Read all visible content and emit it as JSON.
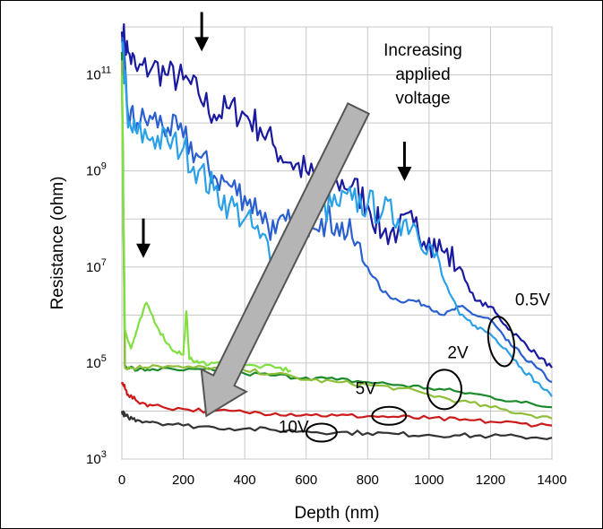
{
  "chart_data": {
    "type": "line",
    "xlabel": "Depth (nm)",
    "ylabel": "Resistance (ohm)",
    "xlim": [
      0,
      1400
    ],
    "ylim_log10": [
      3,
      12
    ],
    "y_scale": "log",
    "grid": true,
    "x_ticks": [
      "0",
      "200",
      "400",
      "600",
      "800",
      "1000",
      "1200",
      "1400"
    ],
    "y_ticks": [
      {
        "base": "10",
        "exp": "3",
        "value": 1000
      },
      {
        "base": "10",
        "exp": "5",
        "value": 100000
      },
      {
        "base": "10",
        "exp": "7",
        "value": 10000000
      },
      {
        "base": "10",
        "exp": "9",
        "value": 1000000000
      },
      {
        "base": "10",
        "exp": "11",
        "value": 100000000000
      }
    ],
    "series": [
      {
        "color": "#1a1aa0",
        "x": [
          0,
          20,
          50,
          100,
          150,
          200,
          250,
          300,
          350,
          400,
          450,
          500,
          550,
          600,
          650,
          700,
          750,
          800,
          850,
          900,
          950,
          1000,
          1050,
          1100,
          1150,
          1200,
          1250,
          1300,
          1350,
          1400
        ],
        "y": [
          800000000000.0,
          300000000000.0,
          120000000000.0,
          150000000000.0,
          100000000000.0,
          80000000000.0,
          40000000000.0,
          15000000000.0,
          20000000000.0,
          15000000000.0,
          8000000000.0,
          3000000000.0,
          1500000000.0,
          1000000000.0,
          500000000.0,
          600000000.0,
          500000000.0,
          200000000.0,
          50000000.0,
          60000000.0,
          80000000.0,
          40000000.0,
          20000000.0,
          10000000.0,
          2000000.0,
          1500000.0,
          600000.0,
          300000.0,
          150000.0,
          80000.0
        ]
      },
      {
        "color": "#2a5fd0",
        "x": [
          0,
          20,
          50,
          100,
          150,
          200,
          250,
          300,
          350,
          400,
          450,
          500,
          550,
          600,
          650,
          700,
          750,
          800,
          850,
          900,
          950,
          1000,
          1050,
          1100,
          1150,
          1200,
          1250,
          1300,
          1350,
          1400
        ],
        "y": [
          600000000000.0,
          15000000000.0,
          10000000000.0,
          12000000000.0,
          8000000000.0,
          5000000000.0,
          2000000000.0,
          800000000.0,
          500000000.0,
          300000000.0,
          150000000.0,
          50000000.0,
          80000000.0,
          150000000.0,
          100000000.0,
          80000000.0,
          40000000.0,
          10000000.0,
          3000000.0,
          2000000.0,
          2000000.0,
          1500000.0,
          1000000.0,
          1500000.0,
          1000000.0,
          800000.0,
          300000.0,
          150000.0,
          80000.0,
          40000.0
        ]
      },
      {
        "color": "#2aa0e6",
        "x": [
          0,
          20,
          50,
          100,
          150,
          200,
          250,
          300,
          350,
          400,
          450,
          500,
          550,
          600,
          650,
          700,
          750,
          800,
          850,
          900,
          950,
          1000,
          1050,
          1100,
          1150,
          1200,
          1250,
          1300,
          1350,
          1400
        ],
        "y": [
          500000000000.0,
          8000000000.0,
          6000000000.0,
          5000000000.0,
          4000000000.0,
          3000000000.0,
          1000000000.0,
          400000000.0,
          200000000.0,
          100000000.0,
          40000000.0,
          20000000.0,
          40000000.0,
          80000000.0,
          150000000.0,
          200000000.0,
          250000000.0,
          200000000.0,
          150000000.0,
          100000000.0,
          80000000.0,
          30000000.0,
          5000000.0,
          1000000.0,
          600000.0,
          400000.0,
          200000.0,
          80000.0,
          40000.0,
          20000.0
        ]
      },
      {
        "color": "#1a8a2a",
        "x": [
          0,
          10,
          50,
          100,
          200,
          300,
          400,
          500,
          600,
          700,
          800,
          900,
          1000,
          1100,
          1200,
          1300,
          1400
        ],
        "y": [
          300000000000.0,
          90000.0,
          70000.0,
          75000.0,
          70000.0,
          70000.0,
          60000.0,
          55000.0,
          50000.0,
          45000.0,
          40000.0,
          35000.0,
          30000.0,
          25000.0,
          20000.0,
          15000.0,
          12000.0
        ]
      },
      {
        "color": "#8fbf3a",
        "x": [
          0,
          10,
          50,
          100,
          200,
          300,
          400,
          500,
          600,
          700,
          800,
          900,
          1000,
          1100,
          1200,
          1300,
          1400
        ],
        "y": [
          200000000000.0,
          80000.0,
          80000.0,
          90000.0,
          80000.0,
          80000.0,
          70000.0,
          60000.0,
          45000.0,
          40000.0,
          35000.0,
          30000.0,
          22000.0,
          16000.0,
          12000.0,
          9000.0,
          7000.0
        ]
      },
      {
        "color": "#7fe040",
        "x": [
          0,
          10,
          30,
          50,
          80,
          120,
          160,
          200,
          210,
          220,
          250,
          300,
          400,
          500,
          550
        ],
        "y": [
          100000000000.0,
          500000.0,
          200000.0,
          500000.0,
          1800000.0,
          500000.0,
          200000.0,
          150000.0,
          1200000.0,
          120000.0,
          100000.0,
          100000.0,
          90000.0,
          80000.0,
          70000.0
        ]
      },
      {
        "color": "#cc1a1a",
        "x": [
          0,
          10,
          20,
          50,
          100,
          200,
          300,
          400,
          500,
          600,
          700,
          800,
          900,
          1000,
          1100,
          1200,
          1300,
          1400
        ],
        "y": [
          40000.0,
          30000.0,
          22000.0,
          16000.0,
          13000.0,
          11000.0,
          10000.0,
          9500.0,
          9000.0,
          8500.0,
          8000.0,
          7800.0,
          7500.0,
          7000.0,
          6500.0,
          6000.0,
          5500.0,
          5000.0
        ]
      },
      {
        "color": "#333333",
        "x": [
          0,
          10,
          20,
          50,
          100,
          200,
          300,
          400,
          500,
          600,
          700,
          800,
          900,
          1000,
          1100,
          1200,
          1300,
          1400
        ],
        "y": [
          10000.0,
          8000.0,
          7500.0,
          6500.0,
          6000.0,
          5000.0,
          4600.0,
          4300.0,
          4000.0,
          3800.0,
          3600.0,
          3500.0,
          3300.0,
          3200.0,
          3100.0,
          3000.0,
          2900.0,
          2800.0
        ]
      }
    ],
    "annotations": [
      {
        "text": "Increasing",
        "x": 980,
        "log10y": 11.4
      },
      {
        "text": "applied",
        "x": 980,
        "log10y": 10.9
      },
      {
        "text": "voltage",
        "x": 980,
        "log10y": 10.4
      },
      {
        "text": "0.5V",
        "x": 1280,
        "log10y": 6.2
      },
      {
        "text": "2V",
        "x": 1060,
        "log10y": 5.1
      },
      {
        "text": "5V",
        "x": 760,
        "log10y": 4.35
      },
      {
        "text": "10V",
        "x": 510,
        "log10y": 3.55
      }
    ],
    "ellipses": [
      {
        "x": 1235,
        "log10y": 5.45
      },
      {
        "x": 1050,
        "log10y": 4.45
      },
      {
        "x": 870,
        "log10y": 3.9
      },
      {
        "x": 650,
        "log10y": 3.55
      }
    ],
    "down_arrows": [
      {
        "x": 260,
        "log10y": 11.6
      },
      {
        "x": 70,
        "log10y": 7.3
      },
      {
        "x": 920,
        "log10y": 8.9
      }
    ],
    "big_arrow": {
      "from_x": 770,
      "from_log10y": 10.3,
      "to_x": 275,
      "to_log10y": 3.9
    }
  }
}
